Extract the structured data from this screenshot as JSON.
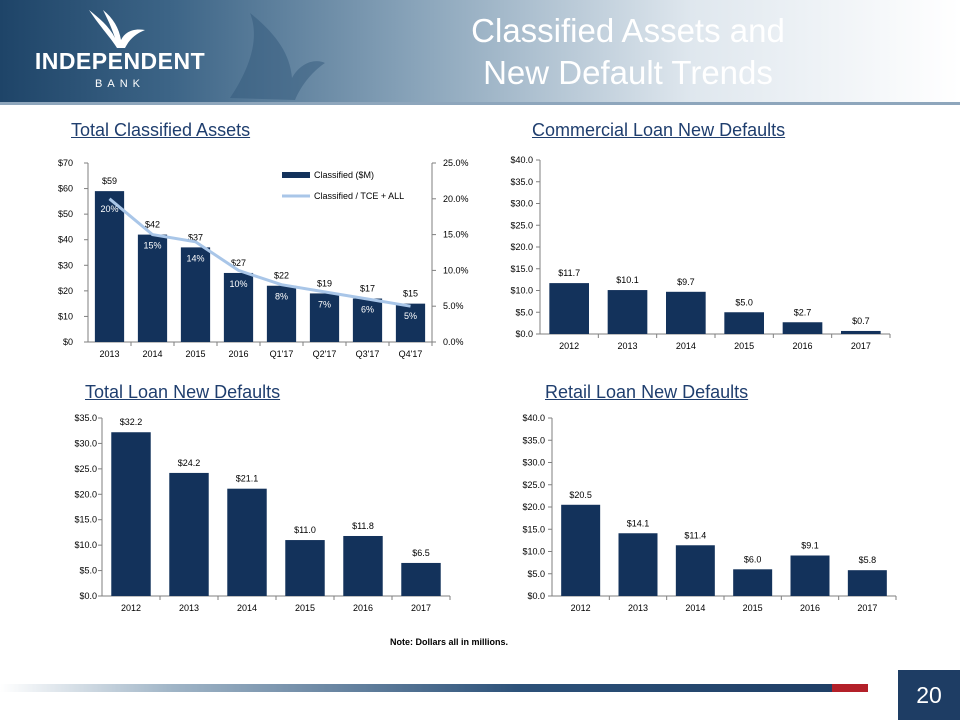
{
  "header": {
    "logo_name": "INDEPENDENT",
    "logo_sub": "BANK",
    "title_line1": "Classified Assets and",
    "title_line2": "New Default Trends"
  },
  "note": "Note: Dollars all in millions.",
  "page_number": "20",
  "colors": {
    "bar": "#13325b",
    "line": "#a9c6e8",
    "title_text": "#1f3e6e",
    "header_dark": "#1e4468"
  },
  "chart_data": [
    {
      "id": "tca",
      "type": "bar",
      "title": "Total Classified Assets",
      "categories": [
        "2013",
        "2014",
        "2015",
        "2016",
        "Q1'17",
        "Q2'17",
        "Q3'17",
        "Q4'17"
      ],
      "series": [
        {
          "name": "Classified ($M)",
          "type": "bar",
          "values": [
            59,
            42,
            37,
            27,
            22,
            19,
            17,
            15
          ],
          "labels": [
            "$59",
            "$42",
            "$37",
            "$27",
            "$22",
            "$19",
            "$17",
            "$15"
          ]
        },
        {
          "name": "Classified / TCE + ALL",
          "type": "line",
          "axis": "right",
          "values": [
            20,
            15,
            14,
            10,
            8,
            7,
            6,
            5
          ],
          "labels": [
            "20%",
            "15%",
            "14%",
            "10%",
            "8%",
            "7%",
            "6%",
            "5%"
          ]
        }
      ],
      "ylim": [
        0,
        70
      ],
      "yticks": [
        "$0",
        "$10",
        "$20",
        "$30",
        "$40",
        "$50",
        "$60",
        "$70"
      ],
      "y2lim": [
        0,
        25
      ],
      "y2ticks": [
        "0.0%",
        "5.0%",
        "10.0%",
        "15.0%",
        "20.0%",
        "25.0%"
      ],
      "legend": "top-right",
      "grid": false
    },
    {
      "id": "cld",
      "type": "bar",
      "title": "Commercial Loan New Defaults",
      "categories": [
        "2012",
        "2013",
        "2014",
        "2015",
        "2016",
        "2017"
      ],
      "values": [
        11.7,
        10.1,
        9.7,
        5.0,
        2.7,
        0.7
      ],
      "labels": [
        "$11.7",
        "$10.1",
        "$9.7",
        "$5.0",
        "$2.7",
        "$0.7"
      ],
      "ylim": [
        0,
        40
      ],
      "yticks": [
        "$0.0",
        "$5.0",
        "$10.0",
        "$15.0",
        "$20.0",
        "$25.0",
        "$30.0",
        "$35.0",
        "$40.0"
      ],
      "grid": false
    },
    {
      "id": "tld",
      "type": "bar",
      "title": "Total Loan New Defaults",
      "categories": [
        "2012",
        "2013",
        "2014",
        "2015",
        "2016",
        "2017"
      ],
      "values": [
        32.2,
        24.2,
        21.1,
        11.0,
        11.8,
        6.5
      ],
      "labels": [
        "$32.2",
        "$24.2",
        "$21.1",
        "$11.0",
        "$11.8",
        "$6.5"
      ],
      "ylim": [
        0,
        35
      ],
      "yticks": [
        "$0.0",
        "$5.0",
        "$10.0",
        "$15.0",
        "$20.0",
        "$25.0",
        "$30.0",
        "$35.0"
      ],
      "grid": false
    },
    {
      "id": "rld",
      "type": "bar",
      "title": "Retail Loan New Defaults",
      "categories": [
        "2012",
        "2013",
        "2014",
        "2015",
        "2016",
        "2017"
      ],
      "values": [
        20.5,
        14.1,
        11.4,
        6.0,
        9.1,
        5.8
      ],
      "labels": [
        "$20.5",
        "$14.1",
        "$11.4",
        "$6.0",
        "$9.1",
        "$5.8"
      ],
      "ylim": [
        0,
        40
      ],
      "yticks": [
        "$0.0",
        "$5.0",
        "$10.0",
        "$15.0",
        "$20.0",
        "$25.0",
        "$30.0",
        "$35.0",
        "$40.0"
      ],
      "grid": false
    }
  ]
}
